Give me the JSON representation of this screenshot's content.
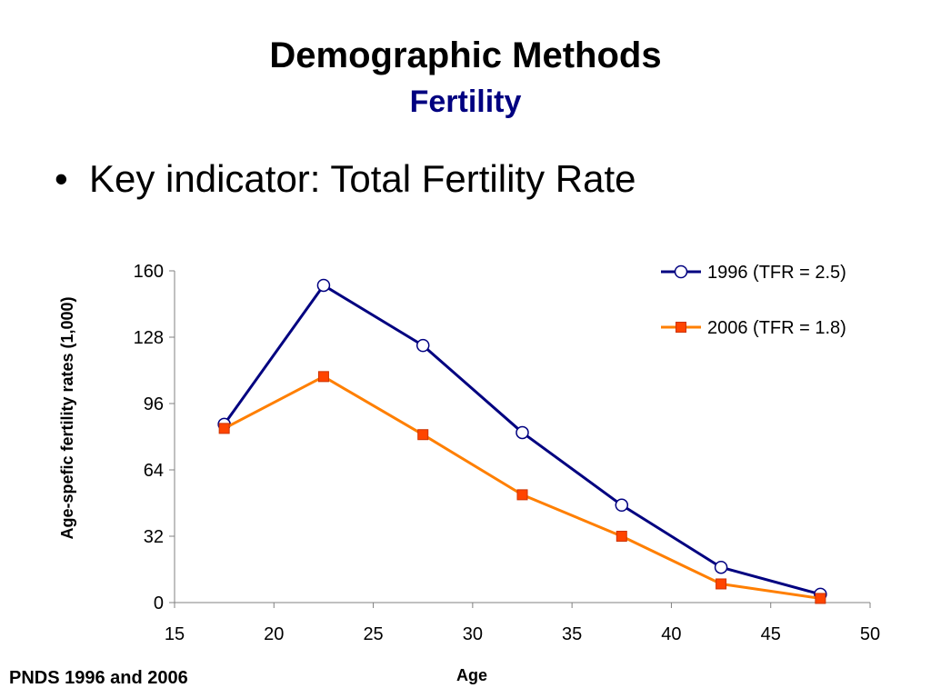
{
  "slide": {
    "title": "Demographic Methods",
    "subtitle": "Fertility",
    "bullet": "Key indicator: Total Fertility Rate",
    "source": "PNDS 1996 and 2006"
  },
  "colors": {
    "title": "#000000",
    "subtitle": "#000080",
    "series_1996": "#000080",
    "series_2006": "#FF7F00",
    "marker_2006_fill": "#FF4500"
  },
  "chart_data": {
    "type": "line",
    "title": "",
    "xlabel": "Age",
    "ylabel": "Age-spefic fertility rates (1,000)",
    "xlim": [
      15,
      50
    ],
    "ylim": [
      0,
      160
    ],
    "xticks": [
      15,
      20,
      25,
      30,
      35,
      40,
      45,
      50
    ],
    "yticks": [
      0,
      32,
      64,
      96,
      128,
      160
    ],
    "grid": false,
    "legend_position": "top-right",
    "series": [
      {
        "name": "1996 (TFR = 2.5)",
        "marker": "circle",
        "x": [
          17.5,
          22.5,
          27.5,
          32.5,
          37.5,
          42.5,
          47.5
        ],
        "y": [
          86,
          153,
          124,
          82,
          47,
          17,
          4
        ]
      },
      {
        "name": "2006 (TFR = 1.8)",
        "marker": "square",
        "x": [
          17.5,
          22.5,
          27.5,
          32.5,
          37.5,
          42.5,
          47.5
        ],
        "y": [
          84,
          109,
          81,
          52,
          32,
          9,
          2
        ]
      }
    ]
  }
}
